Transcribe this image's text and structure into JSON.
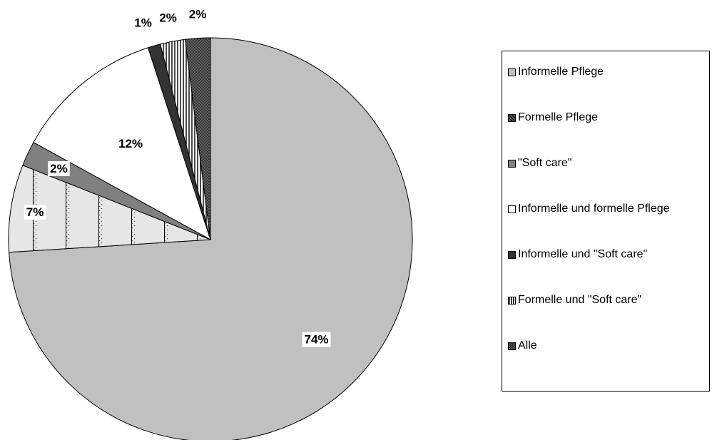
{
  "chart_data": {
    "type": "pie",
    "title": "",
    "slices": [
      {
        "label": "Informelle Pflege",
        "value": 74,
        "display": "74%",
        "fill": "#c0c0c0",
        "pattern": "solid"
      },
      {
        "label": "Formelle Pflege",
        "value": 7,
        "display": "7%",
        "fill": "#e0e0e0",
        "pattern": "dots-hatch"
      },
      {
        "label": "\"Soft care\"",
        "value": 2,
        "display": "2%",
        "fill": "#808080",
        "pattern": "solid"
      },
      {
        "label": "Informelle und formelle Pflege",
        "value": 12,
        "display": "12%",
        "fill": "#ffffff",
        "pattern": "solid"
      },
      {
        "label": "Informelle und \"Soft care\"",
        "value": 1,
        "display": "1%",
        "fill": "#333333",
        "pattern": "solid"
      },
      {
        "label": "Formelle und \"Soft care\"",
        "value": 2,
        "display": "2%",
        "fill": "#ffffff",
        "pattern": "vertical-lines"
      },
      {
        "label": "Alle",
        "value": 2,
        "display": "2%",
        "fill": "#333333",
        "pattern": "dots"
      }
    ],
    "legend": [
      "Informelle Pflege",
      "Formelle Pflege",
      "\"Soft care\"",
      "Informelle und formelle Pflege",
      "Informelle und \"Soft care\"",
      "Formelle und \"Soft care\"",
      "Alle"
    ],
    "legend_position": "right",
    "start": "12 o'clock",
    "direction": "clockwise"
  }
}
